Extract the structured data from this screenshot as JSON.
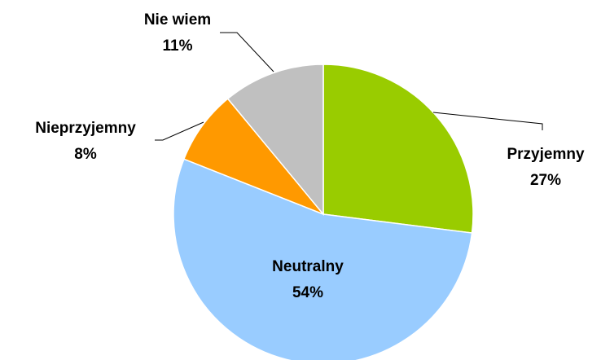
{
  "chart_data": {
    "type": "pie",
    "categories": [
      "Przyjemny",
      "Neutralny",
      "Nieprzyjemny",
      "Nie wiem"
    ],
    "values": [
      27,
      54,
      8,
      11
    ],
    "value_labels": [
      "27%",
      "54%",
      "8%",
      "11%"
    ],
    "colors": [
      "#99cc00",
      "#99ccff",
      "#ff9900",
      "#c0c0c0"
    ]
  }
}
